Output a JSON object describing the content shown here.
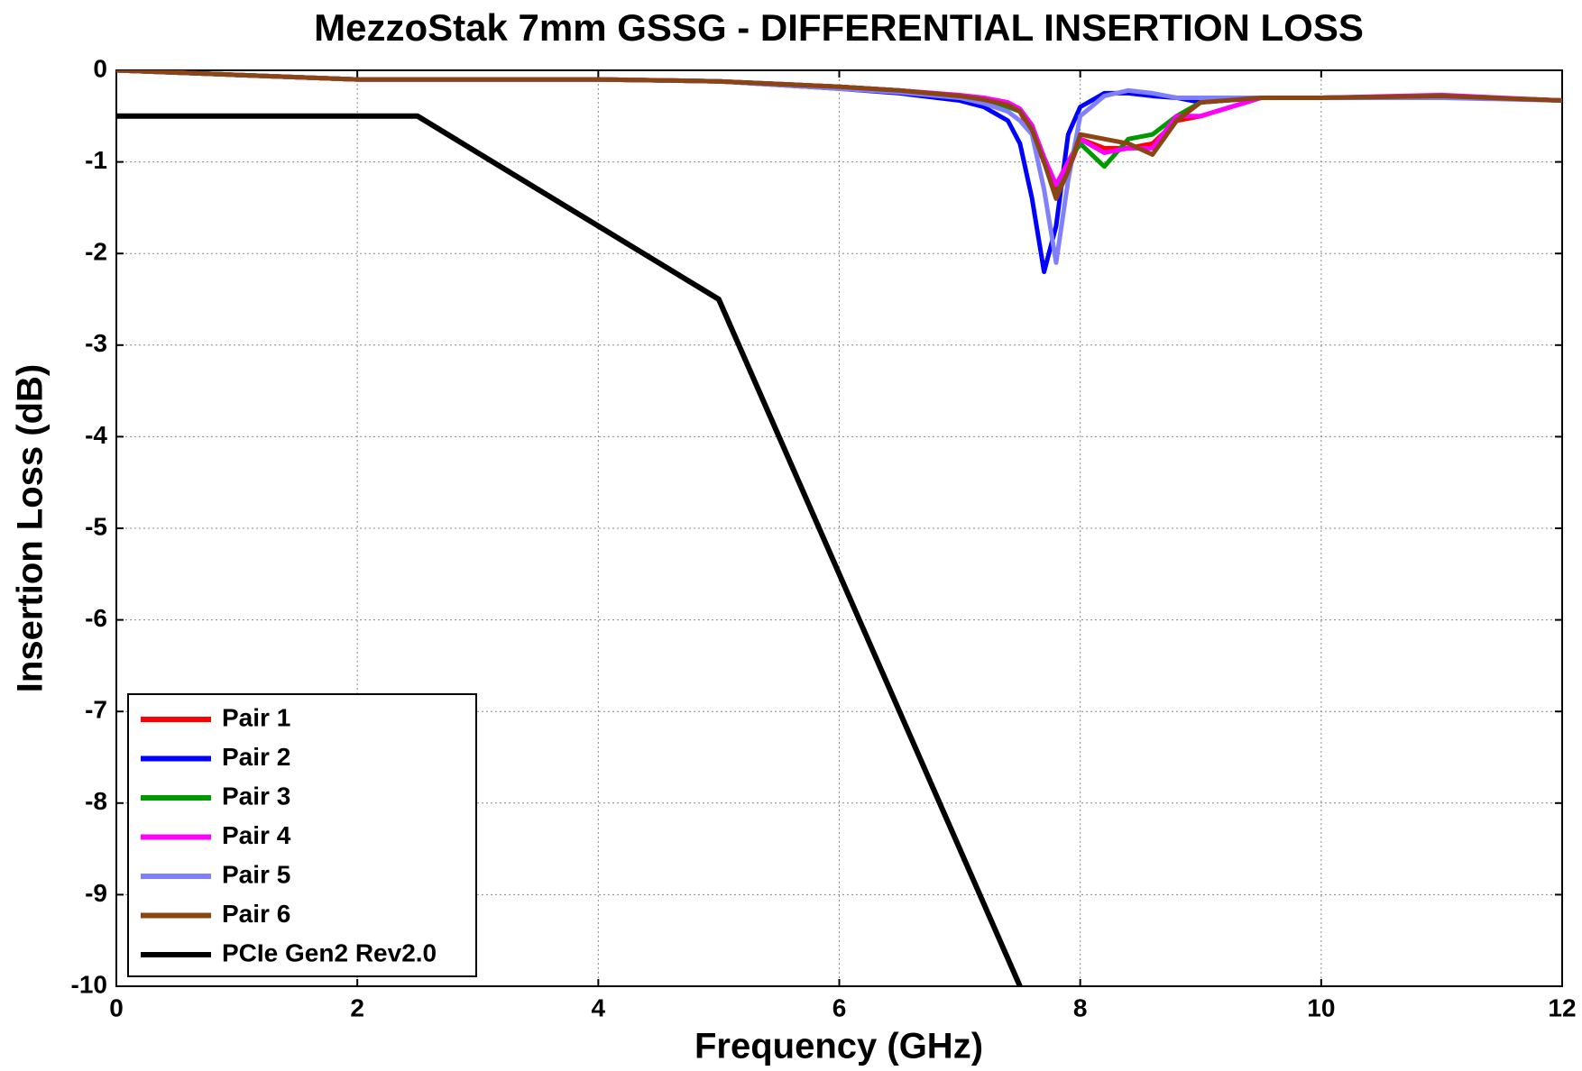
{
  "chart_data": {
    "type": "line",
    "title": "MezzoStak 7mm GSSG - DIFFERENTIAL INSERTION LOSS",
    "xlabel": "Frequency (GHz)",
    "ylabel": "Insertion Loss (dB)",
    "xlim": [
      0,
      12
    ],
    "ylim": [
      -10,
      0
    ],
    "xticks": [
      0,
      2,
      4,
      6,
      8,
      10,
      12
    ],
    "yticks": [
      0,
      -1,
      -2,
      -3,
      -4,
      -5,
      -6,
      -7,
      -8,
      -9,
      -10
    ],
    "grid": true,
    "legend": "lower left",
    "series": [
      {
        "name": "Pair 1",
        "color": "#ff0000",
        "x": [
          0,
          1,
          2,
          3,
          4,
          5,
          6,
          6.5,
          7,
          7.2,
          7.4,
          7.5,
          7.6,
          7.7,
          7.8,
          7.9,
          8.0,
          8.2,
          8.4,
          8.6,
          8.8,
          9,
          9.5,
          10,
          11,
          12
        ],
        "values": [
          0,
          -0.05,
          -0.1,
          -0.1,
          -0.1,
          -0.12,
          -0.18,
          -0.22,
          -0.28,
          -0.32,
          -0.38,
          -0.45,
          -0.7,
          -1.0,
          -1.3,
          -1.1,
          -0.75,
          -0.85,
          -0.85,
          -0.8,
          -0.55,
          -0.5,
          -0.3,
          -0.3,
          -0.28,
          -0.33
        ]
      },
      {
        "name": "Pair 2",
        "color": "#0000ff",
        "x": [
          0,
          1,
          2,
          3,
          4,
          5,
          6,
          6.5,
          7,
          7.2,
          7.4,
          7.5,
          7.6,
          7.7,
          7.8,
          7.9,
          8.0,
          8.2,
          8.4,
          8.6,
          8.8,
          9,
          9.5,
          10,
          11,
          12
        ],
        "values": [
          0,
          -0.05,
          -0.1,
          -0.1,
          -0.1,
          -0.12,
          -0.2,
          -0.25,
          -0.33,
          -0.4,
          -0.55,
          -0.8,
          -1.4,
          -2.2,
          -1.7,
          -0.7,
          -0.4,
          -0.25,
          -0.25,
          -0.28,
          -0.3,
          -0.35,
          -0.3,
          -0.3,
          -0.28,
          -0.33
        ]
      },
      {
        "name": "Pair 3",
        "color": "#009900",
        "x": [
          0,
          1,
          2,
          3,
          4,
          5,
          6,
          6.5,
          7,
          7.2,
          7.4,
          7.5,
          7.6,
          7.7,
          7.8,
          7.9,
          8.0,
          8.2,
          8.4,
          8.6,
          8.8,
          9,
          9.5,
          10,
          11,
          12
        ],
        "values": [
          0,
          -0.05,
          -0.1,
          -0.1,
          -0.1,
          -0.12,
          -0.18,
          -0.22,
          -0.28,
          -0.33,
          -0.4,
          -0.45,
          -0.6,
          -1.0,
          -1.4,
          -1.0,
          -0.8,
          -1.05,
          -0.75,
          -0.7,
          -0.5,
          -0.35,
          -0.3,
          -0.3,
          -0.28,
          -0.33
        ]
      },
      {
        "name": "Pair 4",
        "color": "#ff00ff",
        "x": [
          0,
          1,
          2,
          3,
          4,
          5,
          6,
          6.5,
          7,
          7.2,
          7.4,
          7.5,
          7.6,
          7.7,
          7.8,
          7.9,
          8.0,
          8.2,
          8.4,
          8.6,
          8.8,
          9,
          9.5,
          10,
          11,
          12
        ],
        "values": [
          0,
          -0.05,
          -0.1,
          -0.1,
          -0.1,
          -0.12,
          -0.18,
          -0.22,
          -0.27,
          -0.3,
          -0.35,
          -0.42,
          -0.6,
          -0.95,
          -1.25,
          -1.0,
          -0.75,
          -0.9,
          -0.85,
          -0.85,
          -0.5,
          -0.5,
          -0.3,
          -0.3,
          -0.27,
          -0.33
        ]
      },
      {
        "name": "Pair 5",
        "color": "#8080ff",
        "x": [
          0,
          1,
          2,
          3,
          4,
          5,
          6,
          6.5,
          7,
          7.2,
          7.4,
          7.5,
          7.6,
          7.7,
          7.8,
          7.9,
          8.0,
          8.2,
          8.4,
          8.6,
          8.8,
          9,
          9.5,
          10,
          11,
          12
        ],
        "values": [
          0,
          -0.05,
          -0.1,
          -0.1,
          -0.1,
          -0.12,
          -0.2,
          -0.24,
          -0.3,
          -0.36,
          -0.45,
          -0.55,
          -0.7,
          -1.3,
          -2.1,
          -1.2,
          -0.5,
          -0.28,
          -0.22,
          -0.25,
          -0.3,
          -0.3,
          -0.3,
          -0.3,
          -0.3,
          -0.33
        ]
      },
      {
        "name": "Pair 6",
        "color": "#8b4513",
        "x": [
          0,
          1,
          2,
          3,
          4,
          5,
          6,
          6.5,
          7,
          7.2,
          7.4,
          7.5,
          7.6,
          7.7,
          7.8,
          7.9,
          8.0,
          8.2,
          8.4,
          8.6,
          8.8,
          9,
          9.5,
          10,
          11,
          12
        ],
        "values": [
          0,
          -0.05,
          -0.1,
          -0.1,
          -0.1,
          -0.12,
          -0.18,
          -0.22,
          -0.28,
          -0.32,
          -0.38,
          -0.45,
          -0.65,
          -1.0,
          -1.4,
          -1.1,
          -0.7,
          -0.75,
          -0.8,
          -0.92,
          -0.55,
          -0.35,
          -0.3,
          -0.3,
          -0.28,
          -0.33
        ]
      },
      {
        "name": "PCIe Gen2 Rev2.0",
        "color": "#000000",
        "x": [
          0,
          2.5,
          5,
          7.5
        ],
        "values": [
          -0.5,
          -0.5,
          -2.5,
          -10
        ]
      }
    ]
  }
}
